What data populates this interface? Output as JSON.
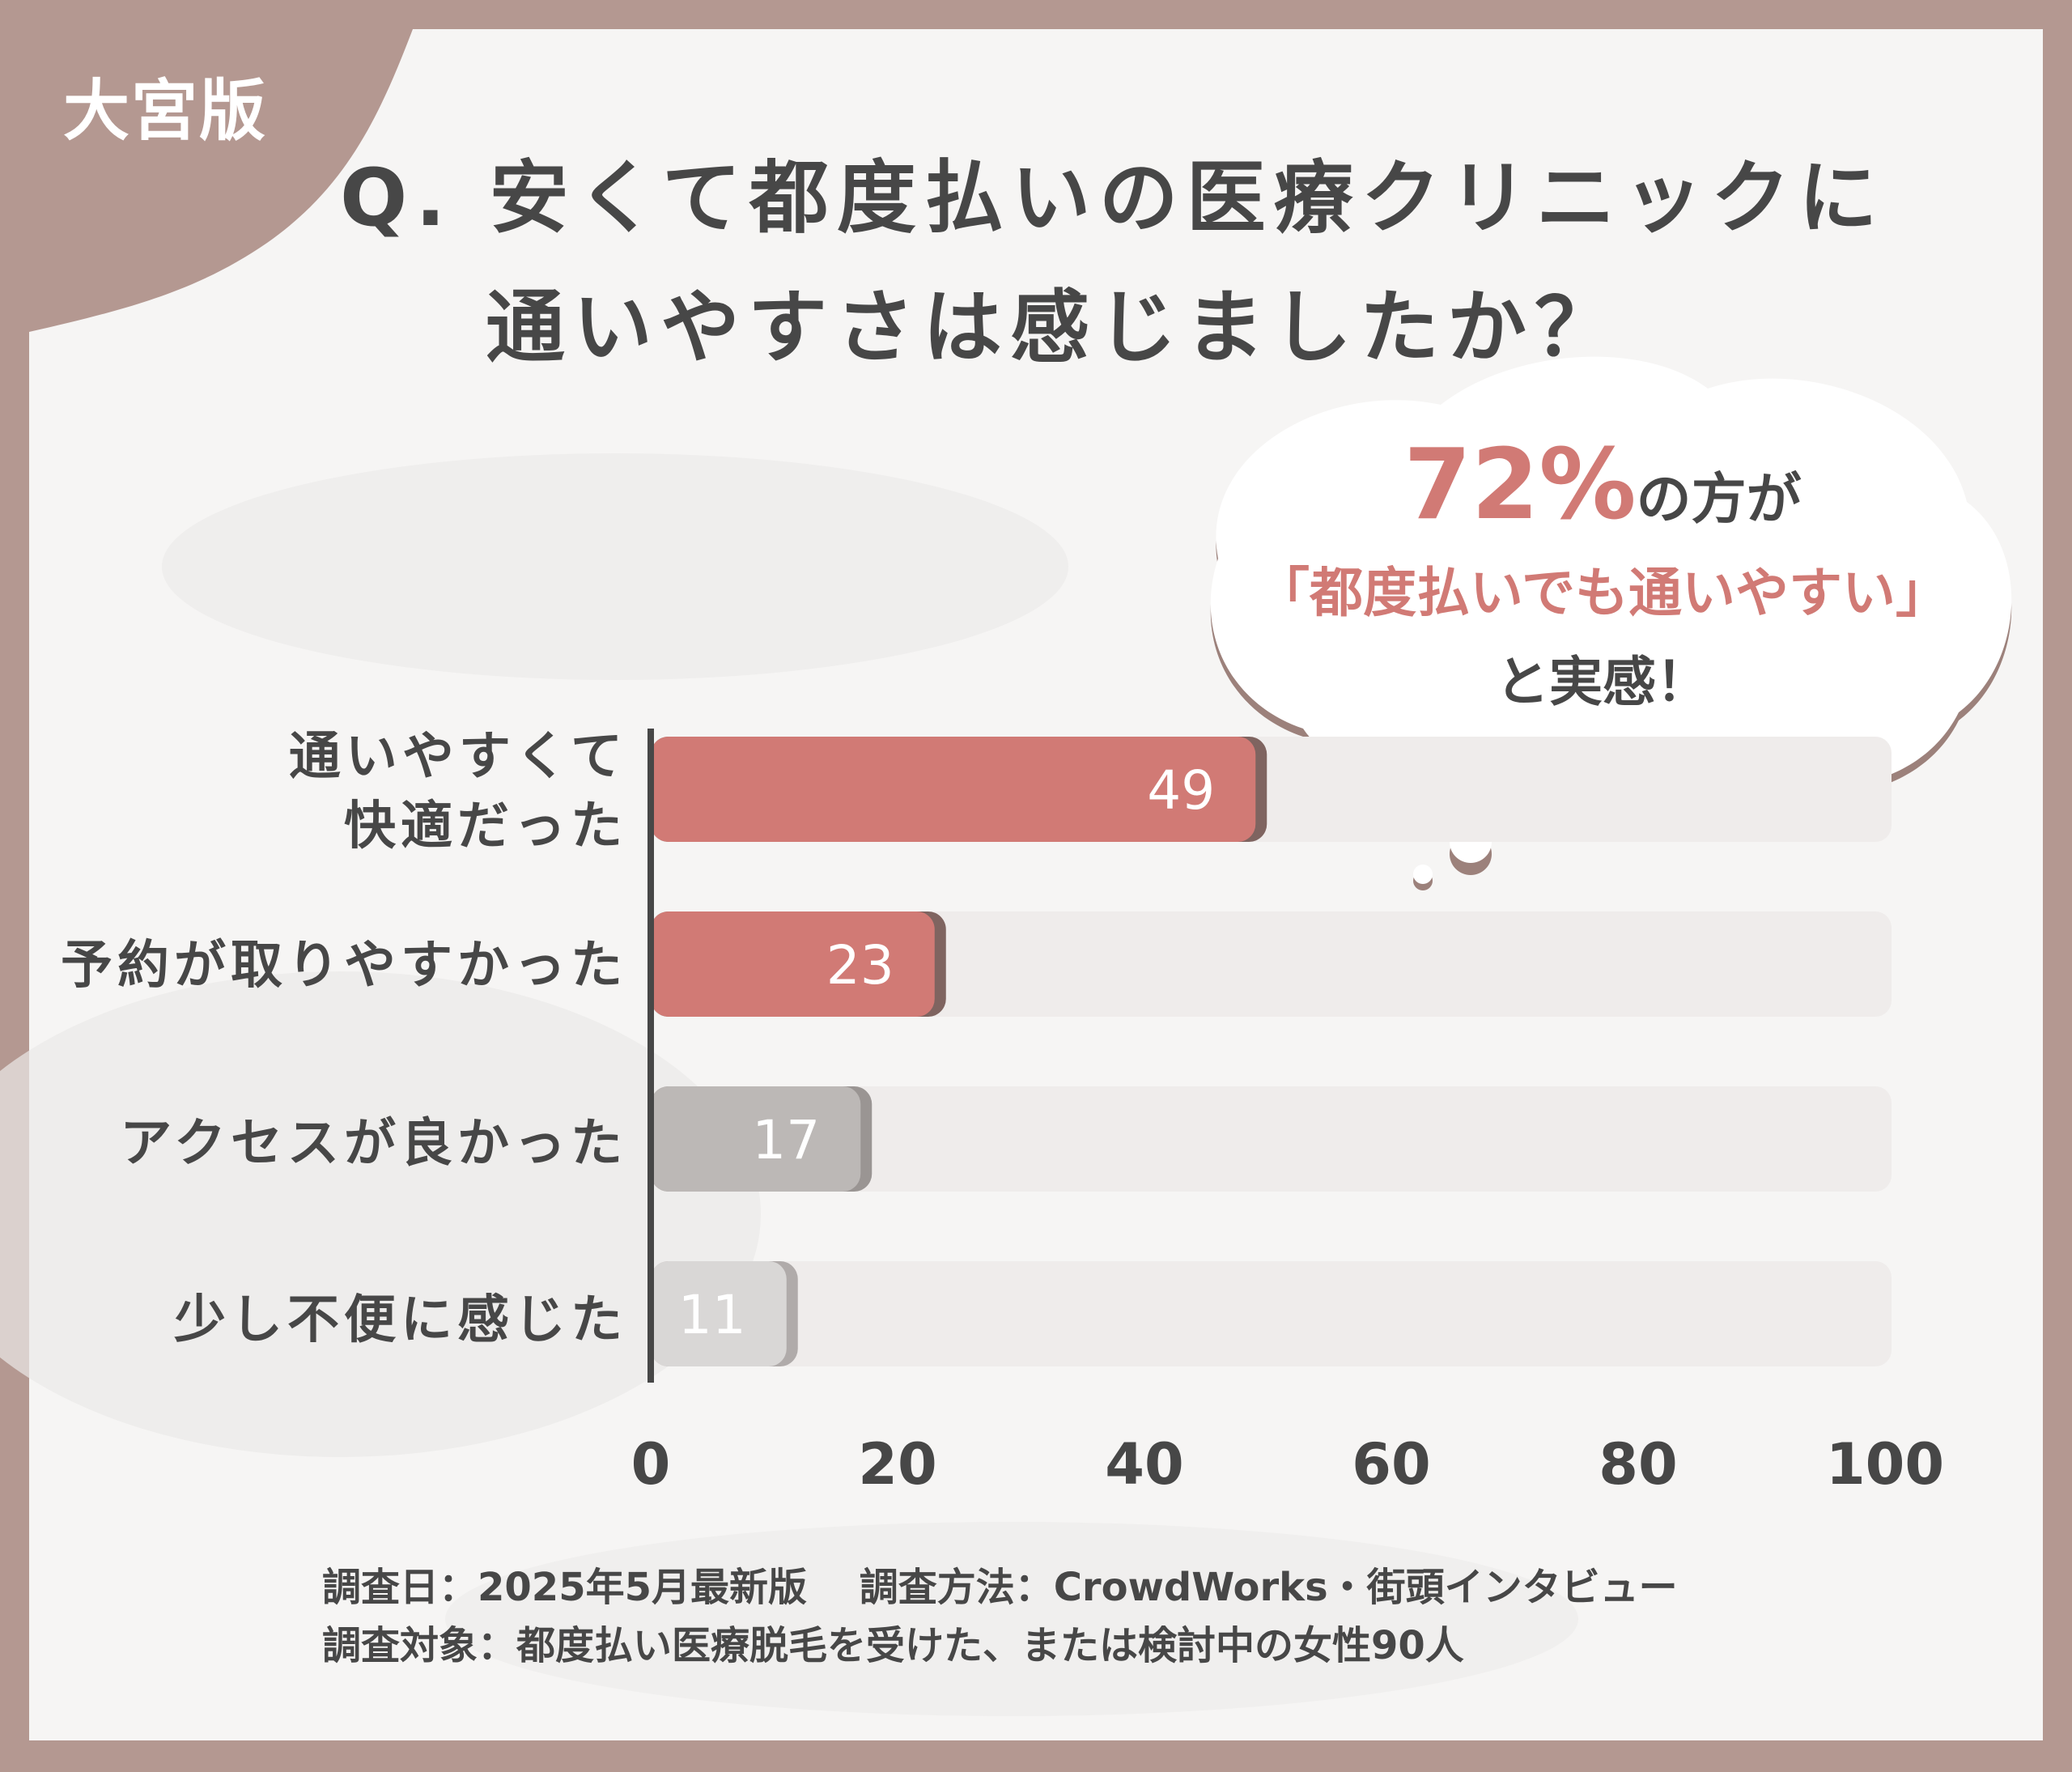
{
  "badge": "大宮版",
  "title": {
    "line1": "Q. 安くて都度払いの医療クリニックに",
    "line2": "通いやすさは感じましたか？"
  },
  "callout": {
    "percent": "72%",
    "after_percent": "の方が",
    "quote": "「都度払いでも通いやすい」",
    "ending": "と実感！"
  },
  "chart_data": {
    "type": "bar",
    "orientation": "horizontal",
    "categories": [
      "通いやすくて快適だった",
      "予約が取りやすかった",
      "アクセスが良かった",
      "少し不便に感じた"
    ],
    "category_lines": [
      [
        "通いやすくて",
        "快適だった"
      ],
      [
        "予約が取りやすかった"
      ],
      [
        "アクセスが良かった"
      ],
      [
        "少し不便に感じた"
      ]
    ],
    "values": [
      49,
      23,
      17,
      11
    ],
    "value_labels": [
      "49",
      "23",
      "17",
      "11"
    ],
    "xlim": [
      0,
      100
    ],
    "ticks": [
      0,
      20,
      40,
      60,
      80,
      100
    ],
    "tick_labels": [
      "0",
      "20",
      "40",
      "60",
      "80",
      "100"
    ],
    "title": "Q. 安くて都度払いの医療クリニックに通いやすさは感じましたか？",
    "xlabel": "",
    "ylabel": "",
    "grid": false,
    "bar_colors": [
      "#d17a75",
      "#d17a75",
      "#bcb8b6",
      "#d9d7d6"
    ],
    "bar_shadow_colors": [
      "#7f6460",
      "#7f6460",
      "#9a9593",
      "#b0abaa"
    ],
    "track_color": "#efeceb",
    "label_color": "#ffffff"
  },
  "footer": {
    "line1": "調査日：2025年5月最新版　 調査方法：CrowdWorks・街頭インタビュー",
    "line2": "調査対象：都度払い医療脱毛を受けた、または検討中の女性90人"
  },
  "colors": {
    "frame": "#b49891",
    "card": "#f6f5f4",
    "text": "#474747",
    "accent": "#d17a75",
    "bubble": "#ffffff",
    "bubble_shadow": "#9c817b"
  }
}
